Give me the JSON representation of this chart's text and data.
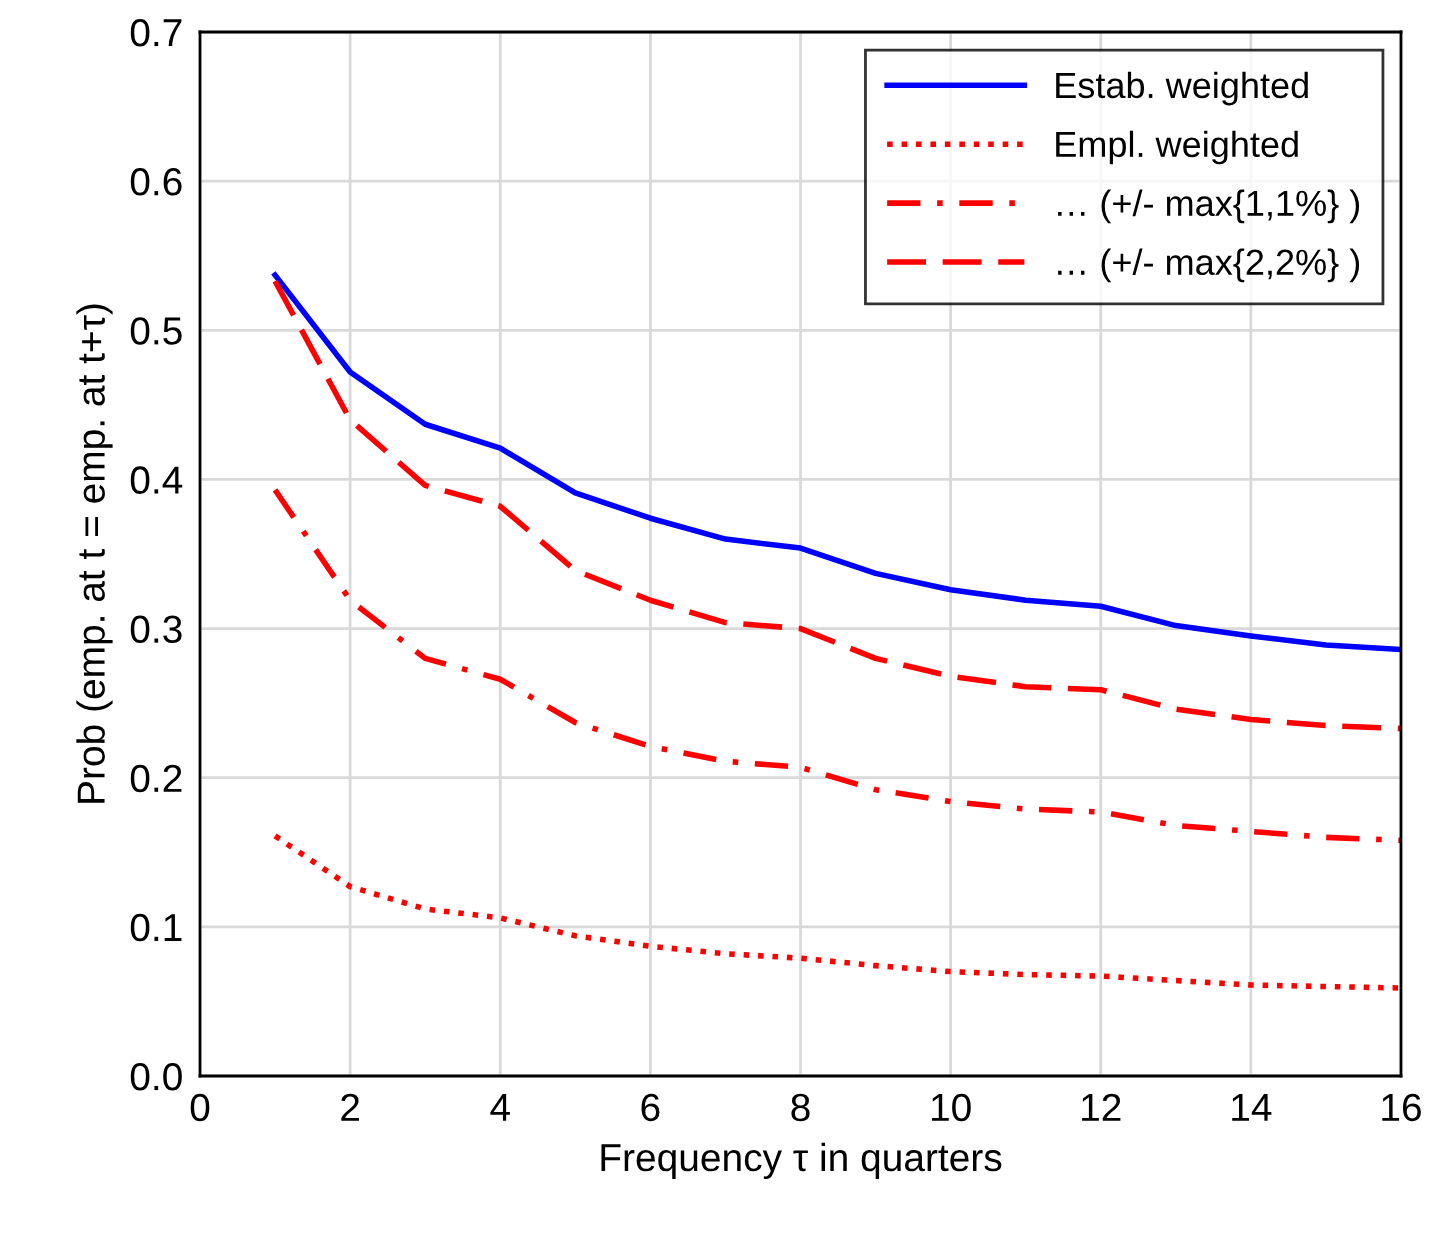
{
  "chart_data": {
    "type": "line",
    "xlabel": "Frequency τ in quarters",
    "ylabel": "Prob (emp. at t = emp. at t+τ)",
    "x": [
      1,
      2,
      3,
      4,
      5,
      6,
      7,
      8,
      9,
      10,
      11,
      12,
      13,
      14,
      15,
      16
    ],
    "series": [
      {
        "name": "Estab. weighted",
        "color": "#0000ff",
        "line_style": "solid",
        "values": [
          0.537,
          0.472,
          0.437,
          0.421,
          0.391,
          0.374,
          0.36,
          0.354,
          0.337,
          0.326,
          0.319,
          0.315,
          0.302,
          0.295,
          0.289,
          0.286
        ]
      },
      {
        "name": "Empl. weighted",
        "color": "#ff0000",
        "line_style": "dotted",
        "values": [
          0.161,
          0.127,
          0.112,
          0.106,
          0.094,
          0.087,
          0.082,
          0.079,
          0.074,
          0.07,
          0.068,
          0.067,
          0.064,
          0.061,
          0.06,
          0.059
        ]
      },
      {
        "name": "… (+/- max{1,1%} )",
        "color": "#ff0000",
        "line_style": "dashdot",
        "values": [
          0.393,
          0.319,
          0.28,
          0.266,
          0.237,
          0.221,
          0.211,
          0.207,
          0.192,
          0.184,
          0.179,
          0.177,
          0.168,
          0.164,
          0.16,
          0.158
        ]
      },
      {
        "name": "… (+/- max{2,2%} )",
        "color": "#ff0000",
        "line_style": "dashed",
        "values": [
          0.533,
          0.44,
          0.396,
          0.382,
          0.339,
          0.319,
          0.304,
          0.3,
          0.28,
          0.268,
          0.261,
          0.259,
          0.246,
          0.239,
          0.235,
          0.233
        ]
      }
    ],
    "xlim": [
      0,
      16
    ],
    "xticks": [
      0,
      2,
      4,
      6,
      8,
      10,
      12,
      14,
      16
    ],
    "ylim": [
      0,
      0.7
    ],
    "yticks": [
      {
        "value": 0,
        "label": "0.0"
      },
      0.1,
      0.2,
      0.3,
      0.4,
      0.5,
      0.6,
      0.7
    ],
    "grid": true,
    "legend": "top right",
    "marker": "none"
  }
}
